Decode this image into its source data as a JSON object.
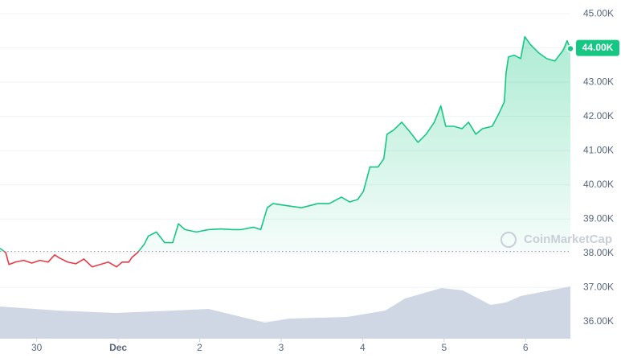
{
  "chart_data": {
    "type": "line",
    "watermark": "CoinMarketCap",
    "x": [
      -0.45,
      -0.38,
      -0.34,
      -0.26,
      -0.16,
      -0.06,
      0.04,
      0.14,
      0.22,
      0.28,
      0.38,
      0.48,
      0.58,
      0.68,
      0.78,
      0.88,
      0.98,
      1.05,
      1.13,
      1.17,
      1.24,
      1.32,
      1.37,
      1.47,
      1.57,
      1.67,
      1.74,
      1.82,
      1.96,
      2.11,
      2.26,
      2.41,
      2.51,
      2.66,
      2.75,
      2.83,
      2.9,
      3.1,
      3.25,
      3.45,
      3.59,
      3.74,
      3.84,
      3.94,
      4.01,
      4.09,
      4.19,
      4.26,
      4.3,
      4.38,
      4.48,
      4.58,
      4.68,
      4.78,
      4.88,
      4.96,
      5.02,
      5.12,
      5.22,
      5.3,
      5.39,
      5.47,
      5.59,
      5.67,
      5.74,
      5.76,
      5.79,
      5.86,
      5.94,
      5.99,
      6.06,
      6.16,
      6.26,
      6.36,
      6.46,
      6.51,
      6.55
    ],
    "values": [
      38140,
      38020,
      37670,
      37740,
      37790,
      37710,
      37790,
      37740,
      37950,
      37860,
      37740,
      37690,
      37830,
      37600,
      37670,
      37740,
      37600,
      37740,
      37740,
      37880,
      38020,
      38260,
      38500,
      38620,
      38310,
      38310,
      38860,
      38690,
      38620,
      38690,
      38710,
      38690,
      38690,
      38760,
      38690,
      39330,
      39450,
      39380,
      39330,
      39450,
      39450,
      39640,
      39500,
      39570,
      39810,
      40520,
      40520,
      40760,
      41480,
      41600,
      41830,
      41550,
      41240,
      41480,
      41830,
      42310,
      41710,
      41710,
      41640,
      41830,
      41480,
      41640,
      41710,
      42070,
      42430,
      43260,
      43740,
      43790,
      43690,
      44330,
      44100,
      43860,
      43690,
      43620,
      43930,
      44210,
      43980
    ],
    "color_up": "#16c784",
    "color_down": "#ea3943",
    "open_price": 38050,
    "current_price": {
      "value": 44000,
      "label": "44.00K"
    },
    "volume": {
      "x": [
        -0.45,
        0.26,
        0.97,
        1.68,
        2.11,
        2.8,
        3.1,
        3.81,
        4.28,
        4.52,
        4.97,
        5.23,
        5.57,
        5.76,
        5.94,
        6.55
      ],
      "values": [
        40,
        35,
        32,
        35,
        37,
        20,
        25,
        27,
        35,
        50,
        63,
        60,
        42,
        45,
        53,
        65
      ],
      "ylim": [
        0,
        80
      ],
      "color": "#cfd6e4"
    },
    "xlim": [
      -0.45,
      6.55
    ],
    "xticks": [
      {
        "value": 0,
        "label": "30"
      },
      {
        "value": 1,
        "label": "Dec"
      },
      2,
      3,
      4,
      5,
      6
    ],
    "ylim": [
      35500,
      45300
    ],
    "yticks": [
      {
        "value": 36000,
        "label": "36.00K"
      },
      {
        "value": 37000,
        "label": "37.00K"
      },
      {
        "value": 38000,
        "label": "38.00K"
      },
      {
        "value": 39000,
        "label": "39.00K"
      },
      {
        "value": 40000,
        "label": "40.00K"
      },
      {
        "value": 41000,
        "label": "41.00K"
      },
      {
        "value": 42000,
        "label": "42.00K"
      },
      {
        "value": 43000,
        "label": "43.00K"
      },
      {
        "value": 44000,
        "label": "44.00K"
      },
      {
        "value": 45000,
        "label": "45.00K"
      }
    ],
    "grid": true
  }
}
